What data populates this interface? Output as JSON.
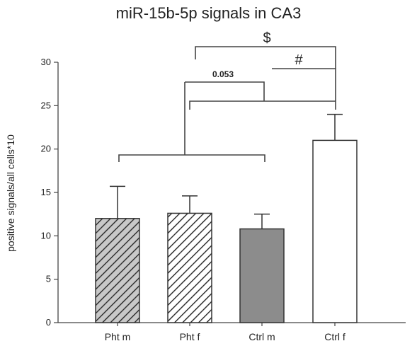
{
  "chart_data": {
    "type": "bar",
    "title": "miR-15b-5p signals in CA3",
    "xlabel": "",
    "ylabel": "positive signals/all cells*10",
    "ylim": [
      0,
      30
    ],
    "yticks": [
      0,
      5,
      10,
      15,
      20,
      25,
      30
    ],
    "grid": false,
    "categories": [
      "Pht m",
      "Pht f",
      "Ctrl m",
      "Ctrl f"
    ],
    "values": [
      12.0,
      12.6,
      10.8,
      21.0
    ],
    "errors": [
      3.7,
      2.0,
      1.7,
      3.0
    ],
    "bar_styles": [
      {
        "fill": "#c8c8c8",
        "pattern": "hatch"
      },
      {
        "fill": "#ffffff",
        "pattern": "hatch"
      },
      {
        "fill": "#8c8c8c",
        "pattern": "none"
      },
      {
        "fill": "#ffffff",
        "pattern": "none"
      }
    ],
    "annotations": [
      {
        "label": "",
        "type": "bracket"
      },
      {
        "label": "0.053",
        "type": "bracket"
      },
      {
        "label": "",
        "type": "bracket"
      },
      {
        "label": "#",
        "type": "bracket"
      },
      {
        "label": "$",
        "type": "bracket"
      }
    ]
  }
}
